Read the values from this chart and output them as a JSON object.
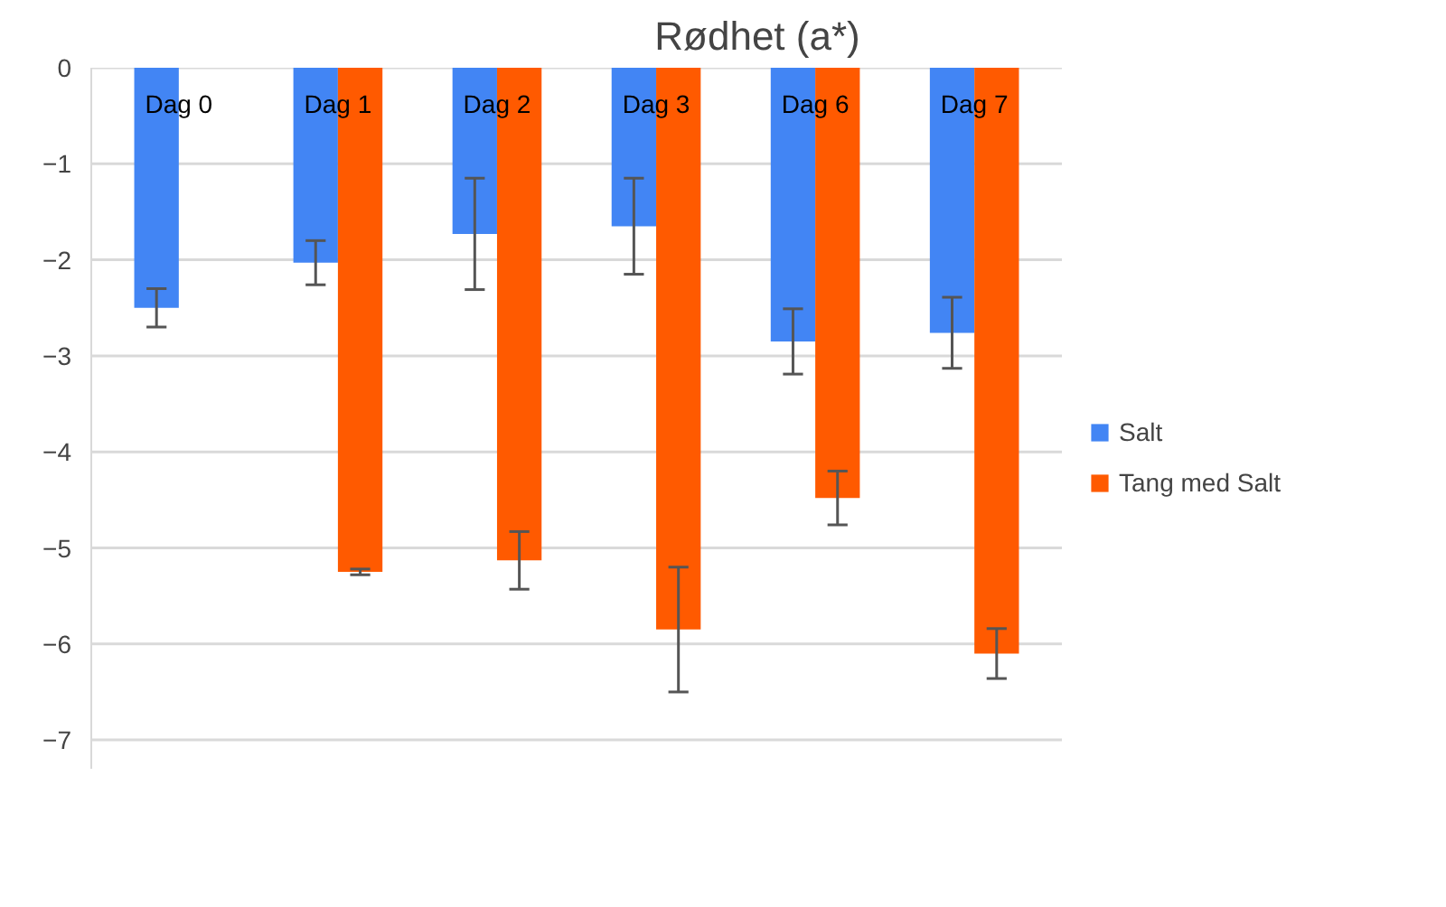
{
  "chart_data": {
    "type": "bar",
    "title": "Rødhet (a*)",
    "categories": [
      "Dag 0",
      "Dag 1",
      "Dag 2",
      "Dag 3",
      "Dag 6",
      "Dag 7"
    ],
    "series": [
      {
        "name": "Salt",
        "color": "#4285f4",
        "values": [
          -2.5,
          -2.03,
          -1.73,
          -1.65,
          -2.85,
          -2.76
        ],
        "errors": [
          0.2,
          0.23,
          0.58,
          0.5,
          0.34,
          0.37
        ]
      },
      {
        "name": "Tang med Salt",
        "color": "#ff5a00",
        "values": [
          null,
          -5.25,
          -5.13,
          -5.85,
          -4.48,
          -6.1
        ],
        "errors": [
          null,
          0.03,
          0.3,
          0.65,
          0.28,
          0.26
        ]
      }
    ],
    "ylim": [
      -7.3,
      0
    ],
    "yticks": [
      0,
      -1,
      -2,
      -3,
      -4,
      -5,
      -6,
      -7
    ],
    "grid": "y",
    "legend": "right"
  }
}
